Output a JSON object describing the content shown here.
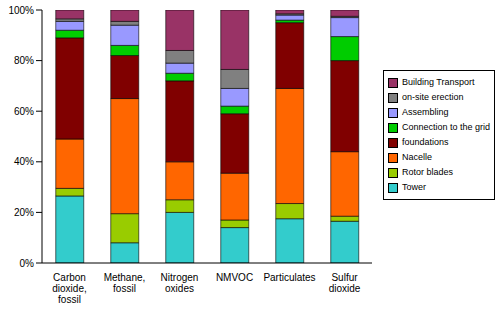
{
  "chart_data": {
    "type": "bar",
    "stacked": true,
    "grid": false,
    "legend": "right",
    "categories": [
      "Carbon dioxide, fossil",
      "Methane, fossil",
      "Nitrogen oxides",
      "NMVOC",
      "Particulates",
      "Sulfur dioxide"
    ],
    "series": [
      {
        "name": "Tower",
        "color": "#33cccc",
        "values": [
          26.5,
          8,
          20,
          14,
          17.5,
          16.5
        ]
      },
      {
        "name": "Rotor blades",
        "color": "#99cc00",
        "values": [
          3,
          11.5,
          5,
          3,
          6,
          2
        ]
      },
      {
        "name": "Nacelle",
        "color": "#ff6600",
        "values": [
          19.5,
          45.5,
          15,
          18.5,
          45.5,
          25.5
        ]
      },
      {
        "name": "foundations",
        "color": "#800000",
        "values": [
          40,
          17,
          32,
          23.5,
          26,
          36
        ]
      },
      {
        "name": "Connection to the grid",
        "color": "#00cc00",
        "values": [
          3,
          4,
          3,
          3,
          1,
          9.5
        ]
      },
      {
        "name": "Assembling",
        "color": "#9999ff",
        "values": [
          3.5,
          8,
          4,
          7,
          2,
          7.5
        ]
      },
      {
        "name": "on-site erection",
        "color": "#808080",
        "values": [
          1,
          1.5,
          5,
          7.5,
          0.5,
          0.5
        ]
      },
      {
        "name": "Building Transport",
        "color": "#993366",
        "values": [
          3.5,
          4.5,
          16,
          23.5,
          1.5,
          2.5
        ]
      }
    ],
    "ylim": [
      0,
      100
    ],
    "yticks": [
      {
        "value": 0,
        "label": "0%"
      },
      {
        "value": 20,
        "label": "20%"
      },
      {
        "value": 40,
        "label": "40%"
      },
      {
        "value": 60,
        "label": "60%"
      },
      {
        "value": 80,
        "label": "80%"
      },
      {
        "value": 100,
        "label": "100%"
      }
    ]
  }
}
